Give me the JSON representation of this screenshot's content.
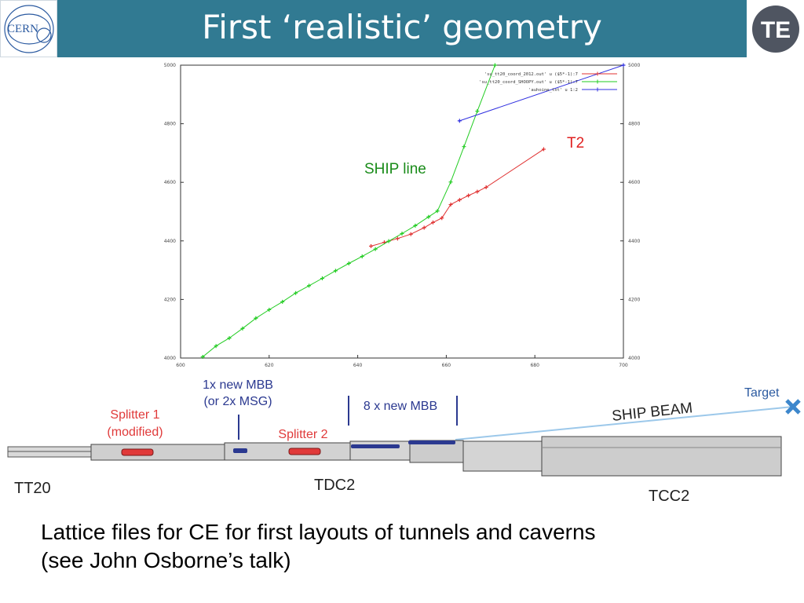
{
  "header": {
    "title": "First ‘realistic’ geometry",
    "cern_logo_text": "CERN",
    "te_logo_text": "TE"
  },
  "chart_data": {
    "type": "line",
    "xlim": [
      600,
      700
    ],
    "ylim": [
      4000,
      5000
    ],
    "x_ticks": [
      "600",
      "620",
      "640",
      "660",
      "680",
      "700"
    ],
    "y_ticks": [
      "4000",
      "4200",
      "4400",
      "4600",
      "4800",
      "5000"
    ],
    "grid": false,
    "legend": {
      "position": "top-right",
      "entries": [
        "'su_tt20_coord_2012.out' u ($5*-1):7",
        "'su_tt20_coord_SHOOPY.out' u ($5*-1):7",
        "'auhoine_txt' u 1:2"
      ]
    },
    "annotations": [
      {
        "text": "T2",
        "color": "#e02020"
      },
      {
        "text": "SHIP line",
        "color": "#1a8c1a"
      }
    ],
    "series": [
      {
        "color": "#e03030",
        "x": [
          643,
          646,
          649,
          652,
          655,
          657,
          659,
          661,
          663,
          665,
          667,
          669,
          682
        ],
        "y": [
          4382,
          4395,
          4408,
          4423,
          4445,
          4463,
          4478,
          4524,
          4540,
          4555,
          4568,
          4583,
          4713
        ]
      },
      {
        "color": "#22cc22",
        "x": [
          605,
          608,
          611,
          614,
          617,
          620,
          623,
          626,
          629,
          632,
          635,
          638,
          641,
          644,
          647,
          650,
          653,
          656,
          658,
          661,
          664,
          667,
          671
        ],
        "y": [
          4004,
          4041,
          4068,
          4101,
          4136,
          4165,
          4192,
          4222,
          4247,
          4272,
          4298,
          4323,
          4347,
          4372,
          4399,
          4425,
          4452,
          4482,
          4502,
          4601,
          4722,
          4843,
          5000
        ]
      },
      {
        "color": "#3030e0",
        "x": [
          663,
          700
        ],
        "y": [
          4810,
          5000
        ]
      }
    ]
  },
  "lattice": {
    "labels": {
      "tt20": "TT20",
      "tdc2": "TDC2",
      "tcc2": "TCC2",
      "splitter1_line1": "Splitter 1",
      "splitter1_line2": "(modified)",
      "splitter2": "Splitter 2",
      "mbb_line1": "1x new MBB",
      "mbb_line2": "(or 2x MSG)",
      "mbb8": "8 x new MBB",
      "ship_beam": "SHIP BEAM",
      "target": "Target"
    },
    "colors": {
      "red": "#e03a3a",
      "blue": "#2b3990",
      "beam": "#9cc8ea",
      "target": "#3d87cc"
    }
  },
  "caption": {
    "line1": "Lattice files for CE for first layouts of tunnels and caverns",
    "line2": "(see John Osborne’s talk)"
  }
}
